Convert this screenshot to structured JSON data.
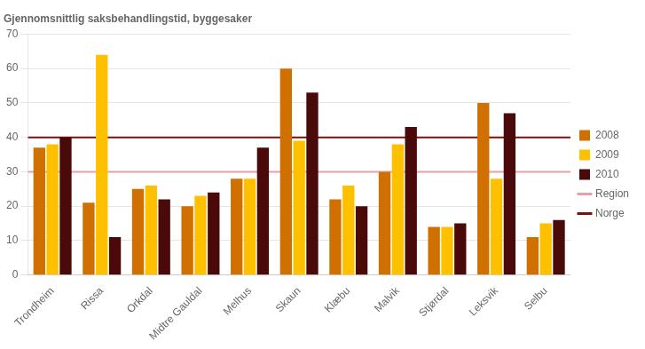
{
  "chart_data": {
    "type": "bar",
    "title": "Gjennomsnittlig saksbehandlingstid, byggesaker",
    "categories": [
      "Trondheim",
      "Rissa",
      "Orkdal",
      "Midtre Gauldal",
      "Melhus",
      "Skaun",
      "Klæbu",
      "Malvik",
      "Stjørdal",
      "Leksvik",
      "Selbu"
    ],
    "series": [
      {
        "name": "2008",
        "color": "#D07000",
        "values": [
          37,
          21,
          25,
          20,
          28,
          60,
          22,
          30,
          14,
          50,
          11
        ]
      },
      {
        "name": "2009",
        "color": "#FFC000",
        "values": [
          38,
          64,
          26,
          23,
          28,
          39,
          26,
          38,
          14,
          28,
          15
        ]
      },
      {
        "name": "2010",
        "color": "#4A0A0A",
        "values": [
          40,
          11,
          22,
          24,
          37,
          53,
          20,
          43,
          15,
          47,
          16
        ]
      }
    ],
    "reference_lines": [
      {
        "name": "Region",
        "value": 30,
        "color": "#E8A0A8"
      },
      {
        "name": "Norge",
        "value": 40,
        "color": "#7B1010"
      }
    ],
    "ylim": [
      0,
      70
    ],
    "yticks": [
      0,
      10,
      20,
      30,
      40,
      50,
      60,
      70
    ],
    "grid": true,
    "legend": "right"
  }
}
